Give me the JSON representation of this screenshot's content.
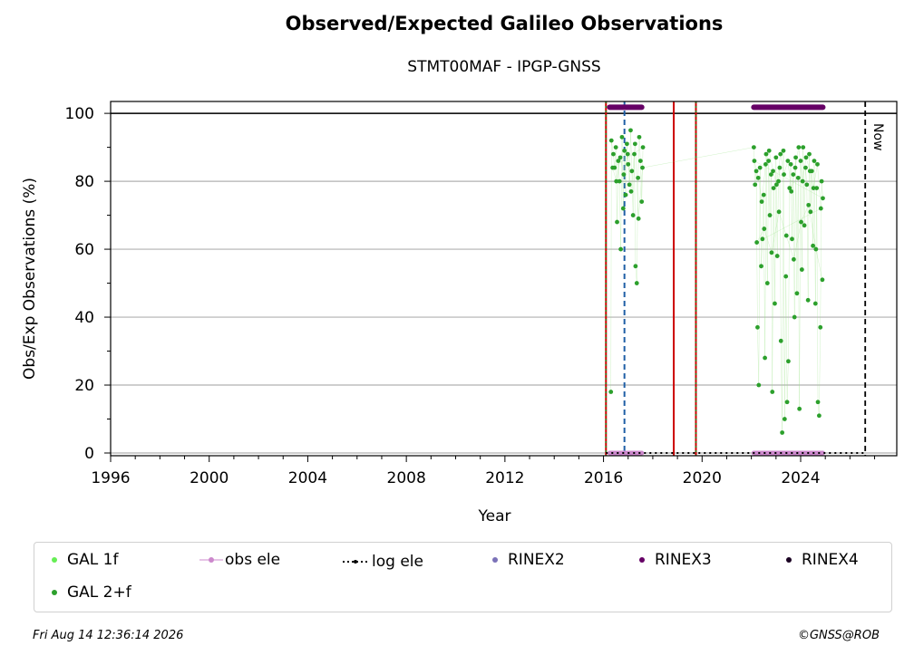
{
  "chart_data": {
    "type": "scatter",
    "title": "Observed/Expected Galileo Observations",
    "subtitle": "STMT00MAF - IPGP-GNSS",
    "xlabel": "Year",
    "ylabel": "Obs/Exp Observations (%)",
    "xlim": [
      1996,
      2027.9
    ],
    "ylim": [
      -0.8,
      103.5
    ],
    "xticks": [
      1996,
      2000,
      2004,
      2008,
      2012,
      2016,
      2020,
      2024
    ],
    "yticks": [
      0,
      20,
      40,
      60,
      80,
      100
    ],
    "grid": "horizontal",
    "legend_placement": "below",
    "reference_line_y": 100,
    "now_marker": {
      "x": 2026.62,
      "label": "Now"
    },
    "vertical_lines": [
      {
        "x": 2016.1,
        "style": "solid",
        "color": "#cc0000"
      },
      {
        "x": 2016.1,
        "style": "dotted",
        "color": "#228b22"
      },
      {
        "x": 2016.85,
        "style": "dashed",
        "color": "#1f5fa6"
      },
      {
        "x": 2018.85,
        "style": "solid",
        "color": "#cc0000"
      },
      {
        "x": 2019.75,
        "style": "solid",
        "color": "#cc0000"
      },
      {
        "x": 2019.75,
        "style": "dotted",
        "color": "#228b22"
      }
    ],
    "series": [
      {
        "name": "GAL 1f",
        "color": "#66ee55"
      },
      {
        "name": "GAL 2+f",
        "color": "#2ca02c",
        "points": [
          [
            2016.3,
            18
          ],
          [
            2016.32,
            92
          ],
          [
            2016.4,
            88
          ],
          [
            2016.45,
            84
          ],
          [
            2016.5,
            90
          ],
          [
            2016.55,
            68
          ],
          [
            2016.6,
            86
          ],
          [
            2016.65,
            80
          ],
          [
            2016.7,
            60
          ],
          [
            2016.75,
            93
          ],
          [
            2016.8,
            72
          ],
          [
            2016.85,
            89
          ],
          [
            2016.9,
            76
          ],
          [
            2016.95,
            91
          ],
          [
            2017.0,
            85
          ],
          [
            2017.05,
            79
          ],
          [
            2017.1,
            95
          ],
          [
            2017.15,
            83
          ],
          [
            2017.2,
            70
          ],
          [
            2017.25,
            88
          ],
          [
            2017.3,
            55
          ],
          [
            2017.35,
            50
          ],
          [
            2017.4,
            81
          ],
          [
            2017.45,
            93
          ],
          [
            2017.5,
            86
          ],
          [
            2017.55,
            74
          ],
          [
            2017.6,
            90
          ],
          [
            2016.37,
            84
          ],
          [
            2016.52,
            80
          ],
          [
            2016.68,
            87
          ],
          [
            2016.82,
            82
          ],
          [
            2016.98,
            88
          ],
          [
            2017.12,
            77
          ],
          [
            2017.28,
            91
          ],
          [
            2017.42,
            69
          ],
          [
            2017.58,
            84
          ],
          [
            2022.1,
            90
          ],
          [
            2022.15,
            79
          ],
          [
            2022.2,
            83
          ],
          [
            2022.25,
            37
          ],
          [
            2022.3,
            20
          ],
          [
            2022.35,
            84
          ],
          [
            2022.4,
            55
          ],
          [
            2022.45,
            63
          ],
          [
            2022.5,
            76
          ],
          [
            2022.55,
            28
          ],
          [
            2022.6,
            88
          ],
          [
            2022.65,
            50
          ],
          [
            2022.7,
            86
          ],
          [
            2022.75,
            70
          ],
          [
            2022.8,
            82
          ],
          [
            2022.85,
            18
          ],
          [
            2022.9,
            78
          ],
          [
            2022.95,
            44
          ],
          [
            2023.0,
            87
          ],
          [
            2023.05,
            58
          ],
          [
            2023.1,
            80
          ],
          [
            2023.15,
            84
          ],
          [
            2023.2,
            33
          ],
          [
            2023.25,
            6
          ],
          [
            2023.3,
            89
          ],
          [
            2023.35,
            10
          ],
          [
            2023.4,
            52
          ],
          [
            2023.45,
            15
          ],
          [
            2023.5,
            27
          ],
          [
            2023.55,
            78
          ],
          [
            2023.6,
            85
          ],
          [
            2023.65,
            63
          ],
          [
            2023.7,
            82
          ],
          [
            2023.75,
            40
          ],
          [
            2023.8,
            87
          ],
          [
            2023.85,
            47
          ],
          [
            2023.9,
            81
          ],
          [
            2023.95,
            13
          ],
          [
            2024.0,
            86
          ],
          [
            2024.05,
            54
          ],
          [
            2024.1,
            90
          ],
          [
            2024.15,
            67
          ],
          [
            2024.2,
            84
          ],
          [
            2024.25,
            79
          ],
          [
            2024.3,
            45
          ],
          [
            2024.35,
            88
          ],
          [
            2024.4,
            71
          ],
          [
            2024.45,
            83
          ],
          [
            2024.5,
            61
          ],
          [
            2024.55,
            86
          ],
          [
            2024.6,
            44
          ],
          [
            2024.65,
            78
          ],
          [
            2024.7,
            15
          ],
          [
            2024.75,
            11
          ],
          [
            2024.8,
            37
          ],
          [
            2024.85,
            80
          ],
          [
            2024.9,
            75
          ],
          [
            2022.12,
            86
          ],
          [
            2022.28,
            81
          ],
          [
            2022.42,
            74
          ],
          [
            2022.58,
            85
          ],
          [
            2022.72,
            89
          ],
          [
            2022.88,
            83
          ],
          [
            2023.02,
            79
          ],
          [
            2023.18,
            88
          ],
          [
            2023.32,
            82
          ],
          [
            2023.48,
            86
          ],
          [
            2023.62,
            77
          ],
          [
            2023.78,
            84
          ],
          [
            2023.92,
            90
          ],
          [
            2024.08,
            80
          ],
          [
            2024.22,
            87
          ],
          [
            2024.38,
            83
          ],
          [
            2024.52,
            78
          ],
          [
            2024.68,
            85
          ],
          [
            2024.82,
            72
          ],
          [
            2022.22,
            62
          ],
          [
            2022.52,
            66
          ],
          [
            2022.82,
            59
          ],
          [
            2023.12,
            71
          ],
          [
            2023.42,
            64
          ],
          [
            2023.72,
            57
          ],
          [
            2024.02,
            68
          ],
          [
            2024.32,
            73
          ],
          [
            2024.62,
            60
          ],
          [
            2024.88,
            51
          ]
        ]
      },
      {
        "name": "obs ele",
        "color": "#cc88cc",
        "segments": [
          [
            2016.25,
            2017.55
          ],
          [
            2022.1,
            2024.9
          ]
        ],
        "y": 0
      },
      {
        "name": "log ele",
        "color": "#000000",
        "segments": [
          [
            2016.1,
            2026.62
          ]
        ],
        "y": 0
      },
      {
        "name": "RINEX2",
        "color": "#7b72b8"
      },
      {
        "name": "RINEX3",
        "color": "#660066",
        "segments": [
          [
            2016.25,
            2017.55
          ],
          [
            2022.1,
            2024.9
          ]
        ],
        "y": 101.8
      },
      {
        "name": "RINEX4",
        "color": "#1a0022"
      }
    ]
  },
  "legend": {
    "items": [
      "GAL 1f",
      "obs ele",
      "log ele",
      "RINEX2",
      "RINEX3",
      "RINEX4",
      "GAL 2+f"
    ]
  },
  "footer": {
    "timestamp": "Fri Aug 14 12:36:14 2026",
    "credit": "©GNSS@ROB"
  }
}
